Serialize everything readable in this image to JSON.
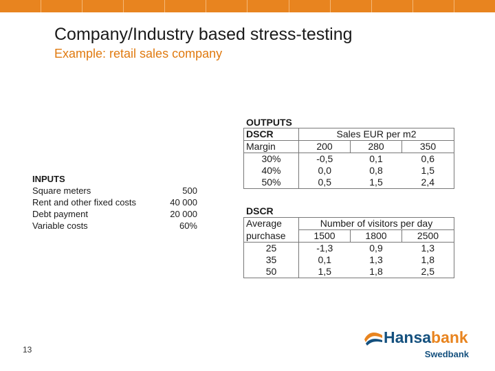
{
  "slide": {
    "title": "Company/Industry based stress-testing",
    "subtitle": "Example: retail sales company",
    "page_number": "13"
  },
  "inputs": {
    "heading": "INPUTS",
    "rows": [
      {
        "label": "Square meters",
        "value": "500"
      },
      {
        "label": "Rent and other fixed costs",
        "value": "40 000"
      },
      {
        "label": "Debt payment",
        "value": "20 000"
      },
      {
        "label": "Variable costs",
        "value": "60%"
      }
    ]
  },
  "outputs": {
    "heading": "OUTPUTS",
    "table1": {
      "title": "DSCR",
      "col_header": "Sales EUR per m2",
      "row_header": "Margin",
      "cols": [
        "200",
        "280",
        "350"
      ],
      "rows": [
        {
          "label": "30%",
          "values": [
            "-0,5",
            "0,1",
            "0,6"
          ]
        },
        {
          "label": "40%",
          "values": [
            "0,0",
            "0,8",
            "1,5"
          ]
        },
        {
          "label": "50%",
          "values": [
            "0,5",
            "1,5",
            "2,4"
          ]
        }
      ]
    },
    "table2": {
      "title": "DSCR",
      "col_header": "Number of visitors per day",
      "row_header_1": "Average",
      "row_header_2": "purchase",
      "cols": [
        "1500",
        "1800",
        "2500"
      ],
      "rows": [
        {
          "label": "25",
          "values": [
            "-1,3",
            "0,9",
            "1,3"
          ]
        },
        {
          "label": "35",
          "values": [
            "0,1",
            "1,3",
            "1,8"
          ]
        },
        {
          "label": "50",
          "values": [
            "1,5",
            "1,8",
            "2,5"
          ]
        }
      ]
    }
  },
  "logo": {
    "brand_part1": "Hansa",
    "brand_part2": "bank",
    "sub": "Swedbank",
    "icon": "wave-logo-icon"
  },
  "colors": {
    "accent": "#e8841f",
    "brand_blue": "#14507e"
  }
}
